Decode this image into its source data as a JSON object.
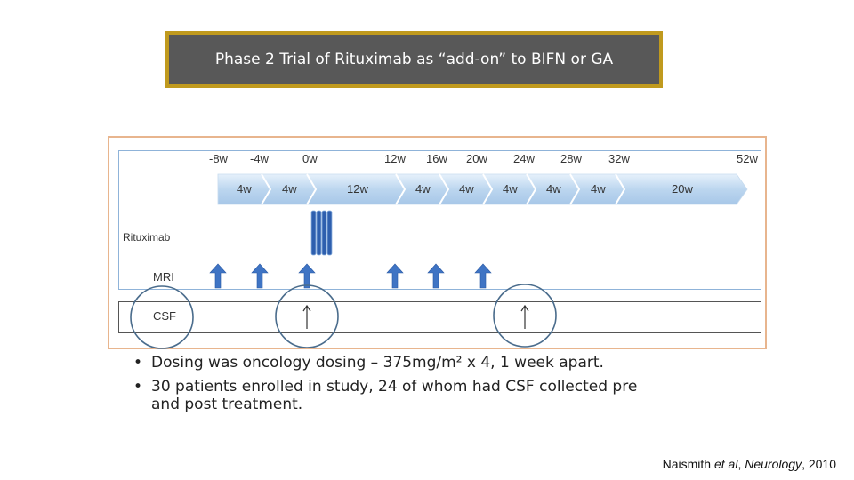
{
  "title": "Phase 2 Trial of Rituximab as “add-on” to BIFN or GA",
  "timeline": {
    "week_labels": [
      "-8w",
      "-4w",
      "0w",
      "12w",
      "16w",
      "20w",
      "24w",
      "28w",
      "32w",
      "52w"
    ],
    "segments": [
      "4w",
      "4w",
      "12w",
      "4w",
      "4w",
      "4w",
      "4w",
      "4w",
      "20w"
    ],
    "rows": {
      "rituximab": "Rituximab",
      "mri": "MRI",
      "csf": "CSF"
    },
    "rituximab_doses": 4,
    "mri_weeks": [
      "-8w",
      "-4w",
      "0w",
      "12w",
      "16w",
      "20w"
    ],
    "csf_weeks": [
      "0w",
      "24w"
    ],
    "colors": {
      "arrow_fill": "#bcd6ef",
      "mri_arrow": "#3f74c4",
      "dose_bar": "#2e5fae",
      "circle": "#4a6c8c"
    }
  },
  "bullets": [
    "Dosing was oncology dosing – 375mg/m² x 4, 1 week apart.",
    "30 patients enrolled in study, 24 of whom had CSF collected pre and post treatment."
  ],
  "citation": {
    "author": "Naismith",
    "etal": "et al",
    "journal": "Neurology",
    "year": ", 2010"
  }
}
